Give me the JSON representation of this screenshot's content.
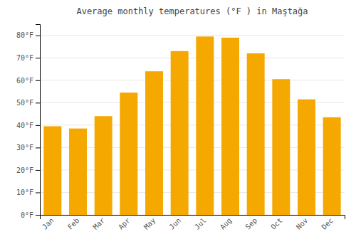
{
  "chart_data": {
    "type": "bar",
    "title": "Average monthly temperatures (°F ) in Maştağa",
    "categories": [
      "Jan",
      "Feb",
      "Mar",
      "Apr",
      "May",
      "Jun",
      "Jul",
      "Aug",
      "Sep",
      "Oct",
      "Nov",
      "Dec"
    ],
    "values": [
      39.5,
      38.5,
      44.0,
      54.5,
      64.0,
      73.0,
      79.5,
      79.0,
      72.0,
      60.5,
      51.5,
      43.5
    ],
    "color": "#F5A800",
    "ylim": [
      0,
      85
    ],
    "yticks": [
      {
        "value": 0,
        "label": "0°F"
      },
      {
        "value": 10,
        "label": "10°F"
      },
      {
        "value": 20,
        "label": "20°F"
      },
      {
        "value": 30,
        "label": "30°F"
      },
      {
        "value": 40,
        "label": "40°F"
      },
      {
        "value": 50,
        "label": "50°F"
      },
      {
        "value": 60,
        "label": "60°F"
      },
      {
        "value": 70,
        "label": "70°F"
      },
      {
        "value": 80,
        "label": "80°F"
      }
    ],
    "grid": true
  }
}
